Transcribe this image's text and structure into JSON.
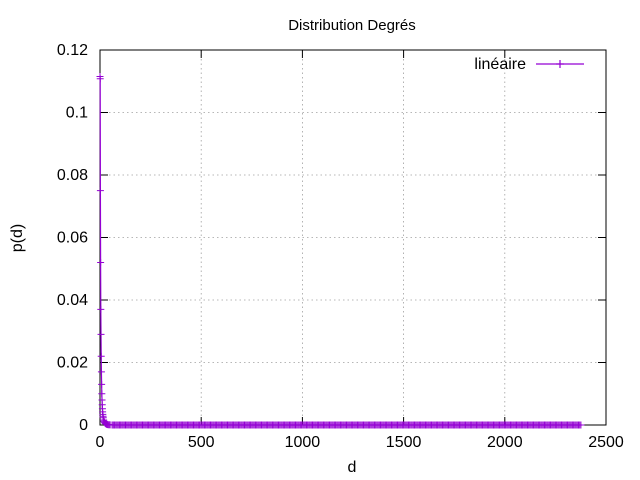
{
  "chart_data": {
    "type": "line",
    "title": "Distribution Degrés",
    "xlabel": "d",
    "ylabel": "p(d)",
    "xlim": [
      0,
      2500
    ],
    "ylim": [
      0,
      0.12
    ],
    "xticks": [
      "0",
      "500",
      "1000",
      "1500",
      "2000",
      "2500"
    ],
    "yticks": [
      "0",
      "0.02",
      "0.04",
      "0.06",
      "0.08",
      "0.1",
      "0.12"
    ],
    "grid": true,
    "legend_position": "top-right",
    "series": [
      {
        "name": "linéaire",
        "color": "#9400d3",
        "marker": "plus",
        "head": {
          "x": [
            0,
            1,
            2,
            3,
            4,
            5,
            6,
            7,
            8,
            9,
            10,
            11,
            12,
            13,
            14,
            15,
            16,
            18,
            20,
            22,
            25,
            28,
            32,
            36,
            40,
            45,
            50,
            60
          ],
          "y": [
            0.1115,
            0.1108,
            0.075,
            0.052,
            0.037,
            0.029,
            0.022,
            0.017,
            0.013,
            0.01,
            0.008,
            0.0065,
            0.0052,
            0.0042,
            0.0034,
            0.0028,
            0.0023,
            0.0016,
            0.0012,
            0.0009,
            0.0006,
            0.0004,
            0.00025,
            0.00015,
            0.0001,
            6e-05,
            3e-05,
            1e-05
          ]
        },
        "tail": {
          "x_start": 60,
          "x_end": 2380,
          "y": 0
        }
      }
    ]
  }
}
